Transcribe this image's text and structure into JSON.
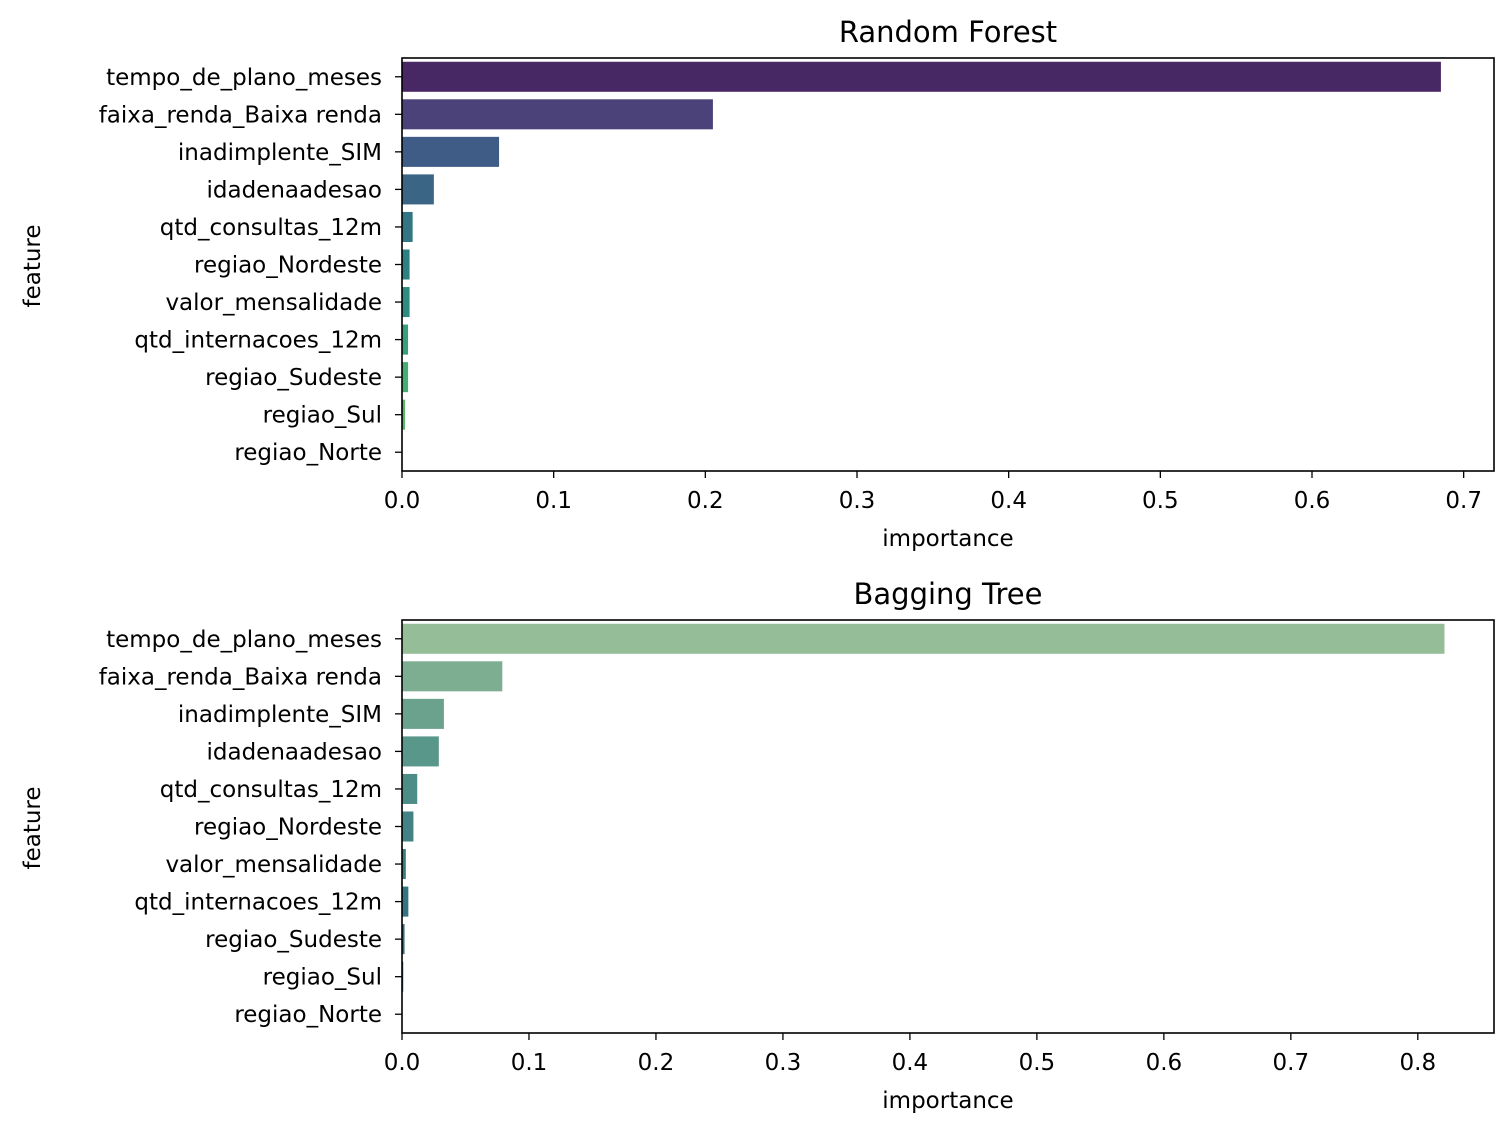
{
  "chart_data": [
    {
      "type": "bar",
      "orientation": "horizontal",
      "title": "Random Forest",
      "xlabel": "importance",
      "ylabel": "feature",
      "xlim": [
        0,
        0.72
      ],
      "xticks": [
        "0.0",
        "0.1",
        "0.2",
        "0.3",
        "0.4",
        "0.5",
        "0.6",
        "0.7"
      ],
      "categories": [
        "tempo_de_plano_meses",
        "faixa_renda_Baixa renda",
        "inadimplente_SIM",
        "idadenaadesao",
        "qtd_consultas_12m",
        "regiao_Nordeste",
        "valor_mensalidade",
        "qtd_internacoes_12m",
        "regiao_Sudeste",
        "regiao_Sul",
        "regiao_Norte"
      ],
      "values": [
        0.685,
        0.205,
        0.064,
        0.021,
        0.007,
        0.005,
        0.005,
        0.004,
        0.004,
        0.002,
        0.0
      ],
      "colors": [
        "#482765",
        "#4a4279",
        "#3e5c86",
        "#3a6584",
        "#327683",
        "#2d8182",
        "#2e8d80",
        "#36a07b",
        "#45ae72",
        "#58b869",
        "#7cc45a"
      ],
      "grid": false,
      "legend": "none"
    },
    {
      "type": "bar",
      "orientation": "horizontal",
      "title": "Bagging Tree",
      "xlabel": "importance",
      "ylabel": "feature",
      "xlim": [
        0,
        0.86
      ],
      "xticks": [
        "0.0",
        "0.1",
        "0.2",
        "0.3",
        "0.4",
        "0.5",
        "0.6",
        "0.7",
        "0.8"
      ],
      "categories": [
        "tempo_de_plano_meses",
        "faixa_renda_Baixa renda",
        "inadimplente_SIM",
        "idadenaadesao",
        "qtd_consultas_12m",
        "regiao_Nordeste",
        "valor_mensalidade",
        "qtd_internacoes_12m",
        "regiao_Sudeste",
        "regiao_Sul",
        "regiao_Norte"
      ],
      "values": [
        0.821,
        0.079,
        0.033,
        0.029,
        0.012,
        0.009,
        0.003,
        0.005,
        0.002,
        0.001,
        0.0
      ],
      "colors": [
        "#95bd97",
        "#7eae92",
        "#6aa28e",
        "#5a978b",
        "#4d8d88",
        "#438385",
        "#3b7b82",
        "#357480",
        "#306d7d",
        "#2c667a",
        "#295f77"
      ],
      "grid": false,
      "legend": "none"
    }
  ]
}
